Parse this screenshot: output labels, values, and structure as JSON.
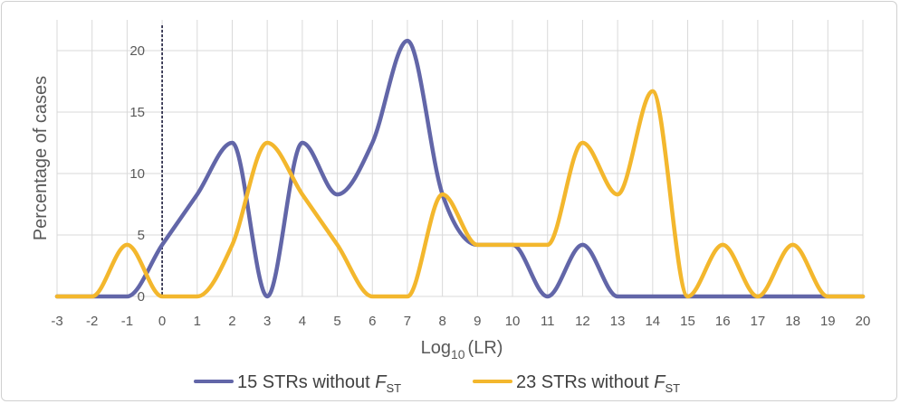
{
  "chart_data": {
    "type": "line",
    "title": "",
    "xlabel": {
      "base": "Log",
      "subscript": "10",
      "rest": "(LR)"
    },
    "ylabel": "Percentage of cases",
    "xlim": [
      -3,
      20
    ],
    "ylim": [
      0,
      22.5
    ],
    "x_ticks": [
      -3,
      -2,
      -1,
      0,
      1,
      2,
      3,
      4,
      5,
      6,
      7,
      8,
      9,
      10,
      11,
      12,
      13,
      14,
      15,
      16,
      17,
      18,
      19,
      20
    ],
    "y_ticks": [
      0,
      5,
      10,
      15,
      20
    ],
    "grid": true,
    "reference_line_x": 0,
    "legend_position": "bottom-center",
    "x": [
      -3,
      -2,
      -1,
      0,
      1,
      2,
      3,
      4,
      5,
      6,
      7,
      8,
      9,
      10,
      11,
      12,
      13,
      14,
      15,
      16,
      17,
      18,
      19,
      20
    ],
    "series": [
      {
        "name": "15 STRs without F_ST",
        "label": {
          "text": "15 STRs without ",
          "italic": "F",
          "subscript": "ST"
        },
        "color": "#6266a8",
        "values": [
          0,
          0,
          0,
          4.2,
          8.3,
          12.5,
          0,
          12.5,
          8.3,
          12.5,
          20.8,
          8.3,
          4.2,
          4.2,
          0,
          4.2,
          0,
          0,
          0,
          0,
          0,
          0,
          0,
          0
        ]
      },
      {
        "name": "23 STRs without F_ST",
        "label": {
          "text": "23 STRs without ",
          "italic": "F",
          "subscript": "ST"
        },
        "color": "#f3b72d",
        "values": [
          0,
          0,
          4.2,
          0,
          0,
          4.2,
          12.5,
          8.3,
          4.2,
          0,
          0,
          8.3,
          4.2,
          4.2,
          4.2,
          12.5,
          8.3,
          16.7,
          0,
          4.2,
          0,
          4.2,
          0,
          0
        ]
      }
    ]
  }
}
